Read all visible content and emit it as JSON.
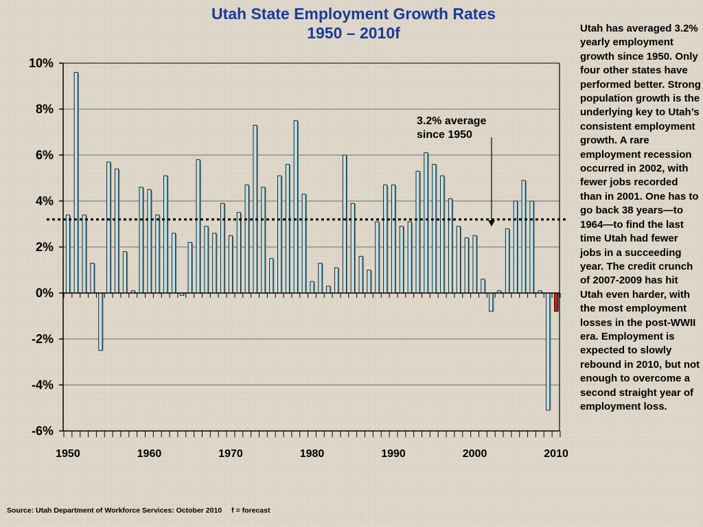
{
  "title": {
    "line1": "Utah State Employment Growth Rates",
    "line2": "1950 – 2010f"
  },
  "sidebar": {
    "text": "Utah has averaged 3.2% yearly employment growth since 1950. Only four other states have performed better. Strong population growth is the underlying key to Utah’s consistent employment growth. A rare employment recession occurred in 2002, with fewer jobs recorded than in 2001. One has to go back 38 years—to 1964—to find the last time Utah had fewer jobs in a succeeding year. The credit crunch of 2007-2009 has hit Utah even harder, with the most employment losses in the post-WWII era. Employment is expected to slowly rebound in 2010, but not enough to overcome a second straight year of employment loss."
  },
  "source": {
    "text": "Source: Utah Department of Workforce Services: October 2010",
    "note": "f = forecast"
  },
  "chart_data": {
    "type": "bar",
    "x": [
      1950,
      1951,
      1952,
      1953,
      1954,
      1955,
      1956,
      1957,
      1958,
      1959,
      1960,
      1961,
      1962,
      1963,
      1964,
      1965,
      1966,
      1967,
      1968,
      1969,
      1970,
      1971,
      1972,
      1973,
      1974,
      1975,
      1976,
      1977,
      1978,
      1979,
      1980,
      1981,
      1982,
      1983,
      1984,
      1985,
      1986,
      1987,
      1988,
      1989,
      1990,
      1991,
      1992,
      1993,
      1994,
      1995,
      1996,
      1997,
      1998,
      1999,
      2000,
      2001,
      2002,
      2003,
      2004,
      2005,
      2006,
      2007,
      2008,
      2009,
      2010
    ],
    "values": [
      3.4,
      9.6,
      3.4,
      1.3,
      -2.5,
      5.7,
      5.4,
      1.8,
      0.1,
      4.6,
      4.5,
      3.4,
      5.1,
      2.6,
      -0.1,
      2.2,
      5.8,
      2.9,
      2.6,
      3.9,
      2.5,
      3.5,
      4.7,
      7.3,
      4.6,
      1.5,
      5.1,
      5.6,
      7.5,
      4.3,
      0.5,
      1.3,
      0.3,
      1.1,
      6.0,
      3.9,
      1.6,
      1.0,
      3.1,
      4.7,
      4.7,
      2.9,
      3.1,
      5.3,
      6.1,
      5.6,
      5.1,
      4.1,
      2.9,
      2.4,
      2.5,
      0.6,
      -0.8,
      0.1,
      2.8,
      4.0,
      4.9,
      4.0,
      0.1,
      -5.1,
      -0.8
    ],
    "forecast_years": [
      2010
    ],
    "colors": {
      "actual": "#bfe0e6",
      "forecast": "#dd1111",
      "title": "#1a3a9a"
    },
    "y_ticks": [
      "10%",
      "8%",
      "6%",
      "4%",
      "2%",
      "0%",
      "-2%",
      "-4%",
      "-6%"
    ],
    "x_ticks": [
      "1950",
      "1960",
      "1970",
      "1980",
      "1990",
      "2000",
      "2010"
    ],
    "ylim": [
      -6,
      10
    ],
    "grid": true,
    "average": {
      "value": 3.2,
      "label_line1": "3.2% average",
      "label_line2": "since 1950"
    }
  }
}
